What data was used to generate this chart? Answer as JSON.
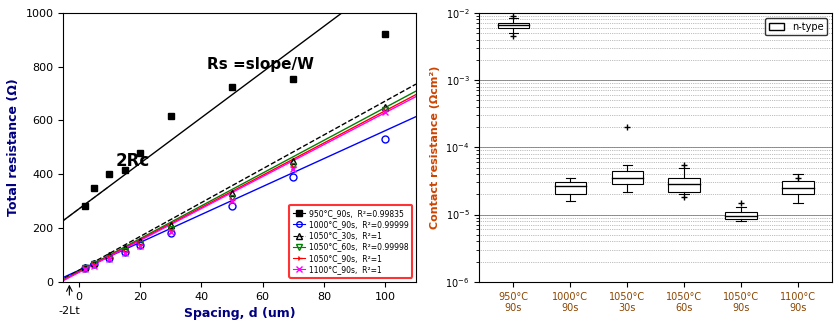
{
  "left_plot": {
    "title_annotation": "Rs =slope/W",
    "annotation_2rc": "2Rc",
    "annotation_2lt": "-2Lt",
    "xlabel": "Spacing, d (um)",
    "ylabel": "Total resistance (Ω)",
    "xlim": [
      -5,
      110
    ],
    "ylim": [
      0,
      1000
    ],
    "xticks": [
      0,
      20,
      40,
      60,
      80,
      100
    ],
    "yticks": [
      0,
      200,
      400,
      600,
      800,
      1000
    ],
    "series": [
      {
        "label": "950°C_90s,  R²=0.99835",
        "color": "black",
        "marker": "s",
        "fillstyle": "full",
        "x": [
          2,
          5,
          10,
          15,
          20,
          30,
          50,
          70,
          100
        ],
        "y": [
          280,
          350,
          400,
          415,
          480,
          615,
          725,
          755,
          920
        ],
        "slope": 8.5,
        "intercept": 270,
        "linestyle": "-"
      },
      {
        "label": "1000°C_90s,  R²=0.99999",
        "color": "blue",
        "marker": "o",
        "fillstyle": "none",
        "x": [
          2,
          5,
          10,
          15,
          20,
          30,
          50,
          70,
          100
        ],
        "y": [
          50,
          65,
          90,
          110,
          135,
          180,
          280,
          390,
          530
        ],
        "slope": 5.2,
        "intercept": 42,
        "linestyle": "-"
      },
      {
        "label": "1050°C_30s,  R²=1",
        "color": "black",
        "marker": "^",
        "fillstyle": "none",
        "x": [
          2,
          5,
          10,
          15,
          20,
          30,
          50,
          70,
          100
        ],
        "y": [
          55,
          70,
          100,
          125,
          150,
          210,
          330,
          450,
          650
        ],
        "slope": 6.3,
        "intercept": 42,
        "linestyle": "--"
      },
      {
        "label": "1050°C_60s,  R²=0.99998",
        "color": "green",
        "marker": "v",
        "fillstyle": "none",
        "x": [
          2,
          5,
          10,
          15,
          20,
          30,
          50,
          70,
          100
        ],
        "y": [
          50,
          65,
          90,
          115,
          140,
          195,
          310,
          430,
          640
        ],
        "slope": 6.1,
        "intercept": 38,
        "linestyle": "-"
      },
      {
        "label": "1050°C_90s,  R²=1",
        "color": "red",
        "marker": "4",
        "fillstyle": "none",
        "x": [
          2,
          5,
          10,
          15,
          20,
          30,
          50,
          70,
          100
        ],
        "y": [
          48,
          62,
          88,
          110,
          135,
          190,
          305,
          425,
          635
        ],
        "slope": 6.0,
        "intercept": 36,
        "linestyle": "-"
      },
      {
        "label": "1100°C_90s,  R²=1",
        "color": "magenta",
        "marker": "x",
        "fillstyle": "none",
        "x": [
          2,
          5,
          10,
          15,
          20,
          30,
          50,
          70,
          100
        ],
        "y": [
          46,
          60,
          85,
          108,
          132,
          185,
          300,
          420,
          630
        ],
        "slope": 5.95,
        "intercept": 34,
        "linestyle": "-"
      }
    ]
  },
  "right_plot": {
    "ylabel": "Contact resistance (Ωcm²)",
    "xlabel_categories": [
      "950°C\n90s",
      "1000°C\n90s",
      "1050°C\n30s",
      "1050°C\n60s",
      "1050°C\n90s",
      "1100°C\n90s"
    ],
    "ylim": [
      1e-06,
      0.01
    ],
    "legend_label": "n-type",
    "boxes": [
      {
        "median": 0.0065,
        "q1": 0.006,
        "q3": 0.007,
        "whisker_low": 0.005,
        "whisker_high": 0.0085,
        "fliers": [
          0.0045,
          0.009
        ]
      },
      {
        "median": 2.7e-05,
        "q1": 2e-05,
        "q3": 3e-05,
        "whisker_low": 1.6e-05,
        "whisker_high": 3.5e-05,
        "fliers": []
      },
      {
        "median": 3.5e-05,
        "q1": 2.8e-05,
        "q3": 4.5e-05,
        "whisker_low": 2.2e-05,
        "whisker_high": 5.5e-05,
        "fliers": [
          0.0002
        ]
      },
      {
        "median": 2.8e-05,
        "q1": 2.2e-05,
        "q3": 3.5e-05,
        "whisker_low": 2e-05,
        "whisker_high": 5e-05,
        "fliers": [
          5.5e-05,
          1.8e-05
        ]
      },
      {
        "median": 9.5e-06,
        "q1": 8.5e-06,
        "q3": 1.1e-05,
        "whisker_low": 8e-06,
        "whisker_high": 1.3e-05,
        "fliers": [
          1.5e-05
        ]
      },
      {
        "median": 2.5e-05,
        "q1": 2e-05,
        "q3": 3.2e-05,
        "whisker_low": 1.5e-05,
        "whisker_high": 4e-05,
        "fliers": [
          3.5e-05
        ]
      }
    ]
  }
}
